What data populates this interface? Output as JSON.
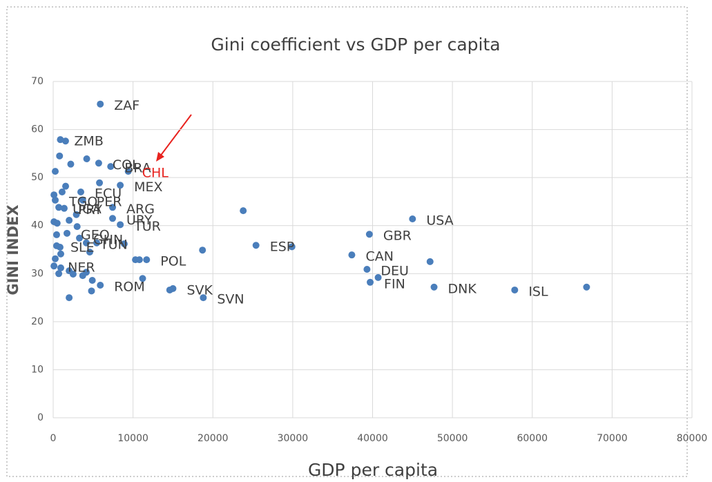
{
  "chart_data": {
    "type": "scatter",
    "title": "Gini coefficient vs GDP per capita",
    "x_label": "GDP per capita",
    "y_label": "GINI INDEX",
    "color": "#4a7ebb",
    "highlight": "CHL",
    "highlight_color": "#e8231f",
    "xlim": [
      0,
      80000
    ],
    "xticks": [
      0,
      10000,
      20000,
      30000,
      40000,
      50000,
      60000,
      70000,
      80000
    ],
    "ylim": [
      0,
      70
    ],
    "yticks": [
      0,
      10,
      20,
      30,
      40,
      50,
      60,
      70
    ],
    "grid": true,
    "x": [
      5900,
      900,
      1550,
      800,
      2200,
      4200,
      5700,
      7200,
      9400,
      260,
      8400,
      5800,
      1560,
      100,
      260,
      1120,
      3460,
      7440,
      3700,
      700,
      1380,
      2900,
      2000,
      100,
      500,
      8400,
      7440,
      3000,
      1730,
      430,
      3290,
      4150,
      8900,
      5450,
      430,
      860,
      4580,
      950,
      260,
      10300,
      10800,
      11700,
      100,
      950,
      2000,
      2500,
      700,
      3700,
      4900,
      4150,
      11200,
      5900,
      4800,
      14600,
      15000,
      18800,
      2000,
      18700,
      23800,
      25400,
      29900,
      39600,
      45000,
      37400,
      39300,
      40700,
      39700,
      47200,
      47700,
      57800,
      66800
    ],
    "y": [
      65.3,
      57.9,
      57.6,
      54.5,
      52.8,
      53.9,
      53,
      52.3,
      51.3,
      51.3,
      48.4,
      48.9,
      48.2,
      46.4,
      45.3,
      47,
      47,
      43.8,
      45.3,
      43.8,
      43.6,
      42.3,
      41.1,
      40.8,
      40.5,
      40.2,
      41.5,
      39.8,
      38.4,
      38.1,
      37.4,
      36.4,
      36.2,
      36.4,
      35.8,
      35.5,
      34.5,
      34.1,
      33.1,
      32.9,
      32.9,
      32.9,
      31.6,
      31.2,
      30.6,
      29.9,
      30,
      29.6,
      28.6,
      30.3,
      29,
      27.6,
      26.4,
      26.6,
      26.9,
      25,
      25,
      34.9,
      43.1,
      35.9,
      35.6,
      38.2,
      41.4,
      33.9,
      30.9,
      29.2,
      28.2,
      32.5,
      27.2,
      26.6,
      27.2
    ],
    "labels": [
      "ZAF",
      "ZMB",
      null,
      null,
      null,
      null,
      "COL",
      "BRA",
      "CHL",
      null,
      "MEX",
      null,
      null,
      null,
      "TGO",
      null,
      "ECU",
      "ARG",
      "PER",
      "UGA",
      "PRY",
      null,
      null,
      null,
      null,
      "TUR",
      "URY",
      null,
      "GEO",
      null,
      "GHN",
      "TUN",
      null,
      null,
      "SLE",
      null,
      null,
      null,
      null,
      null,
      null,
      "POL",
      "NER",
      null,
      null,
      null,
      null,
      null,
      null,
      null,
      null,
      "ROM",
      null,
      null,
      "SVK",
      "SVN",
      null,
      null,
      null,
      "ESP",
      null,
      "GBR",
      "USA",
      "CAN",
      "DEU",
      null,
      "FIN",
      null,
      "DNK",
      "ISL",
      null
    ]
  }
}
